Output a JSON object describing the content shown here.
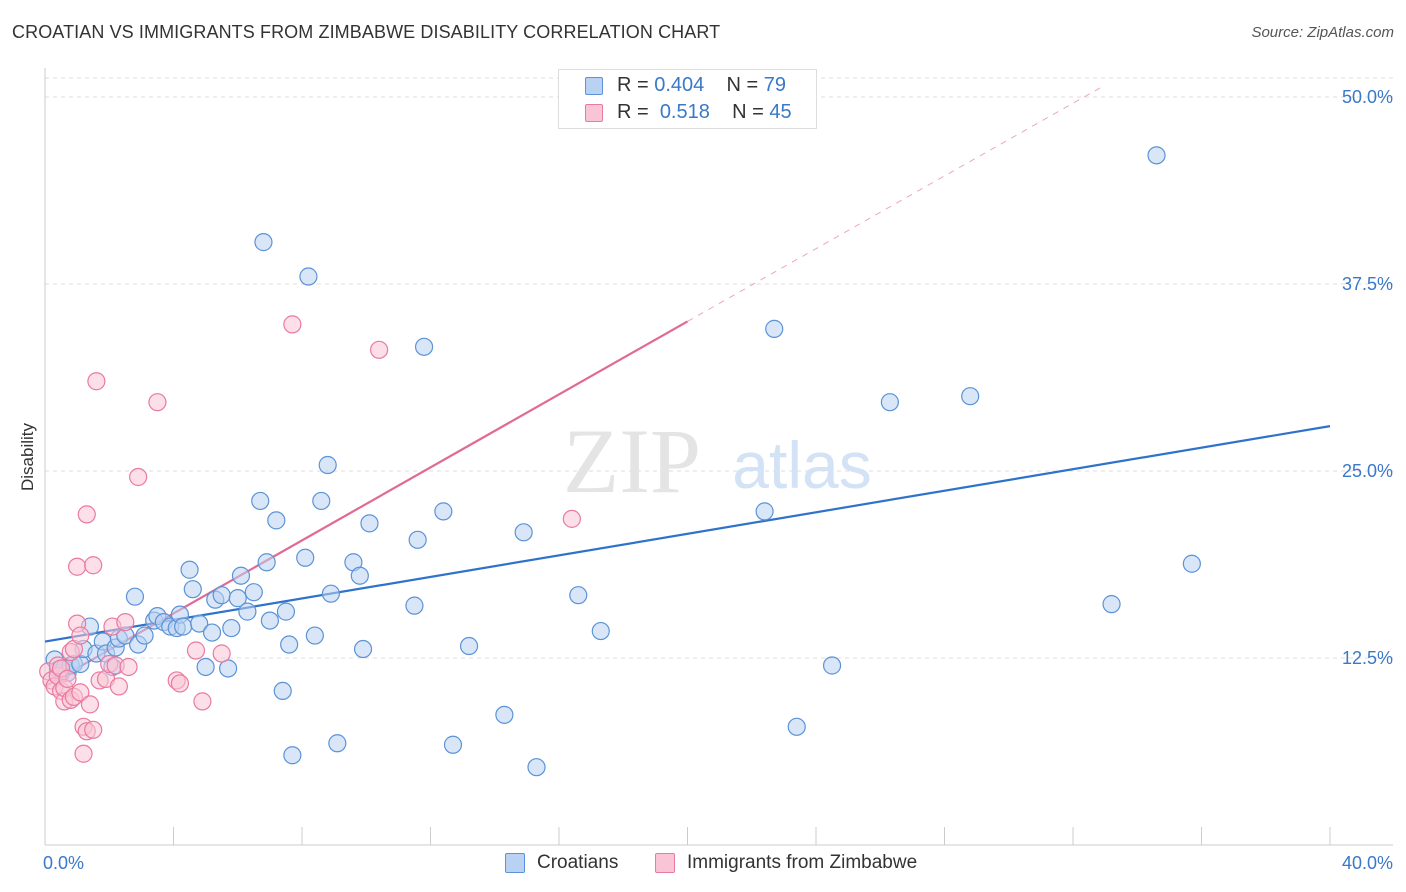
{
  "header": {
    "title": "CROATIAN VS IMMIGRANTS FROM ZIMBABWE DISABILITY CORRELATION CHART",
    "source": "Source: ZipAtlas.com"
  },
  "watermark": {
    "zip": "ZIP",
    "atlas": "atlas"
  },
  "legend": {
    "croatians": {
      "r_label": "R =",
      "r_value": "0.404",
      "n_label": "N =",
      "n_value": "79"
    },
    "zimbabwe": {
      "r_label": "R =",
      "r_value": "0.518",
      "n_label": "N =",
      "n_value": "45"
    }
  },
  "colors": {
    "blue_fill": "#b9d2f3",
    "blue_stroke": "#5b93d6",
    "blue_line": "#2f72cc",
    "pink_fill": "#f9c5d6",
    "pink_stroke": "#e97aa0",
    "pink_line": "#e06a94",
    "axis_text": "#3a78c9",
    "grid": "#dddddd"
  },
  "chart_data": {
    "type": "scatter",
    "title": "CROATIAN VS IMMIGRANTS FROM ZIMBABWE DISABILITY CORRELATION CHART",
    "xlabel": "",
    "ylabel": "Disability",
    "xlim": [
      0,
      40
    ],
    "ylim": [
      0,
      50
    ],
    "x_tick_labels": [
      "0.0%",
      "40.0%"
    ],
    "y_tick_labels": [
      "12.5%",
      "25.0%",
      "37.5%",
      "50.0%"
    ],
    "y_ticks": [
      12.5,
      25,
      37.5,
      50
    ],
    "series": [
      {
        "name": "Croatians",
        "color": "#5b93d6",
        "points": [
          [
            0.3,
            12.4
          ],
          [
            0.4,
            11.7
          ],
          [
            0.5,
            11.5
          ],
          [
            0.6,
            11.8
          ],
          [
            0.7,
            11.5
          ],
          [
            0.8,
            12.0
          ],
          [
            0.9,
            12.1
          ],
          [
            1.1,
            12.1
          ],
          [
            1.2,
            13.1
          ],
          [
            1.4,
            14.6
          ],
          [
            1.6,
            12.8
          ],
          [
            1.8,
            13.6
          ],
          [
            1.9,
            12.8
          ],
          [
            2.1,
            11.9
          ],
          [
            2.2,
            13.2
          ],
          [
            2.3,
            13.8
          ],
          [
            2.5,
            14.0
          ],
          [
            2.8,
            16.6
          ],
          [
            2.9,
            13.4
          ],
          [
            3.1,
            14.0
          ],
          [
            3.4,
            15.0
          ],
          [
            3.5,
            15.3
          ],
          [
            3.7,
            14.9
          ],
          [
            3.9,
            14.6
          ],
          [
            4.1,
            14.5
          ],
          [
            4.2,
            15.4
          ],
          [
            4.3,
            14.6
          ],
          [
            4.5,
            18.4
          ],
          [
            4.6,
            17.1
          ],
          [
            4.8,
            14.8
          ],
          [
            5.0,
            11.9
          ],
          [
            5.2,
            14.2
          ],
          [
            5.3,
            16.4
          ],
          [
            5.5,
            16.7
          ],
          [
            5.7,
            11.8
          ],
          [
            5.8,
            14.5
          ],
          [
            6.0,
            16.5
          ],
          [
            6.1,
            18.0
          ],
          [
            6.3,
            15.6
          ],
          [
            6.5,
            16.9
          ],
          [
            6.7,
            23.0
          ],
          [
            6.8,
            40.3
          ],
          [
            6.9,
            18.9
          ],
          [
            7.0,
            15.0
          ],
          [
            7.2,
            21.7
          ],
          [
            7.4,
            10.3
          ],
          [
            7.5,
            15.6
          ],
          [
            7.6,
            13.4
          ],
          [
            7.7,
            6.0
          ],
          [
            8.1,
            19.2
          ],
          [
            8.2,
            38.0
          ],
          [
            8.4,
            14.0
          ],
          [
            8.6,
            23.0
          ],
          [
            8.8,
            25.4
          ],
          [
            8.9,
            16.8
          ],
          [
            9.1,
            6.8
          ],
          [
            9.6,
            18.9
          ],
          [
            9.8,
            18.0
          ],
          [
            9.9,
            13.1
          ],
          [
            10.1,
            21.5
          ],
          [
            11.5,
            16.0
          ],
          [
            11.6,
            20.4
          ],
          [
            11.8,
            33.3
          ],
          [
            12.4,
            22.3
          ],
          [
            12.7,
            6.7
          ],
          [
            13.2,
            13.3
          ],
          [
            14.3,
            8.7
          ],
          [
            14.9,
            20.9
          ],
          [
            15.3,
            5.2
          ],
          [
            16.6,
            16.7
          ],
          [
            17.3,
            14.3
          ],
          [
            22.4,
            22.3
          ],
          [
            22.7,
            34.5
          ],
          [
            23.4,
            7.9
          ],
          [
            24.5,
            12.0
          ],
          [
            26.3,
            29.6
          ],
          [
            28.8,
            30.0
          ],
          [
            33.2,
            16.1
          ],
          [
            34.6,
            46.1
          ],
          [
            35.7,
            18.8
          ]
        ],
        "trend": [
          [
            0,
            13.6
          ],
          [
            40,
            28.0
          ]
        ]
      },
      {
        "name": "Immigrants from Zimbabwe",
        "color": "#e97aa0",
        "points": [
          [
            0.1,
            11.6
          ],
          [
            0.2,
            11.0
          ],
          [
            0.3,
            10.6
          ],
          [
            0.4,
            11.3
          ],
          [
            0.4,
            12.0
          ],
          [
            0.5,
            10.3
          ],
          [
            0.5,
            11.8
          ],
          [
            0.6,
            9.6
          ],
          [
            0.6,
            10.5
          ],
          [
            0.7,
            11.1
          ],
          [
            0.8,
            9.7
          ],
          [
            0.8,
            12.9
          ],
          [
            0.9,
            13.1
          ],
          [
            0.9,
            9.9
          ],
          [
            1.0,
            14.8
          ],
          [
            1.0,
            18.6
          ],
          [
            1.1,
            10.2
          ],
          [
            1.1,
            14.0
          ],
          [
            1.2,
            6.1
          ],
          [
            1.2,
            7.9
          ],
          [
            1.3,
            7.6
          ],
          [
            1.3,
            22.1
          ],
          [
            1.4,
            9.4
          ],
          [
            1.5,
            7.7
          ],
          [
            1.5,
            18.7
          ],
          [
            1.6,
            31.0
          ],
          [
            1.7,
            11.0
          ],
          [
            1.9,
            11.1
          ],
          [
            2.0,
            12.1
          ],
          [
            2.1,
            14.6
          ],
          [
            2.2,
            12.0
          ],
          [
            2.3,
            10.6
          ],
          [
            2.5,
            14.9
          ],
          [
            2.6,
            11.9
          ],
          [
            2.9,
            24.6
          ],
          [
            3.5,
            29.6
          ],
          [
            4.1,
            11.0
          ],
          [
            4.2,
            10.8
          ],
          [
            4.7,
            13.0
          ],
          [
            4.9,
            9.6
          ],
          [
            5.5,
            12.8
          ],
          [
            7.7,
            34.8
          ],
          [
            10.4,
            33.1
          ],
          [
            16.4,
            21.8
          ]
        ],
        "trend": [
          [
            0,
            10.6
          ],
          [
            20,
            35.0
          ]
        ],
        "trend_extension": [
          [
            20,
            35.0
          ],
          [
            33,
            50.8
          ]
        ]
      }
    ]
  },
  "bottom_legend": {
    "croatians": "Croatians",
    "zimbabwe": "Immigrants from Zimbabwe"
  }
}
